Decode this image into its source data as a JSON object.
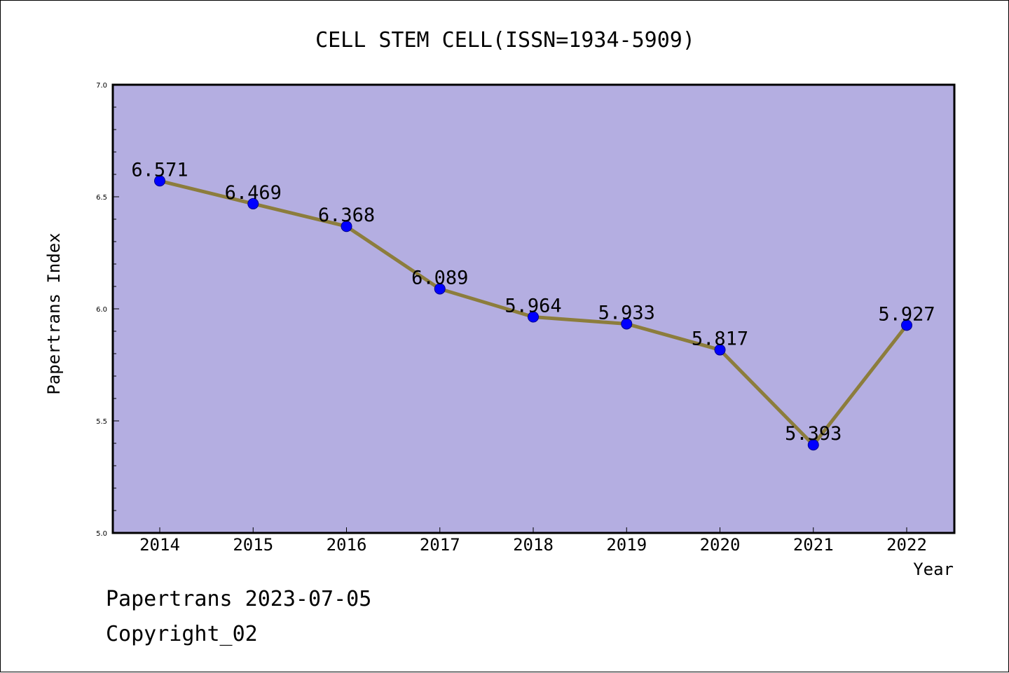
{
  "chart_data": {
    "type": "line",
    "title": "CELL STEM CELL(ISSN=1934-5909)",
    "xlabel": "Year",
    "ylabel": "Papertrans Index",
    "categories": [
      "2014",
      "2015",
      "2016",
      "2017",
      "2018",
      "2019",
      "2020",
      "2021",
      "2022"
    ],
    "series": [
      {
        "values": [
          6.571,
          6.469,
          6.368,
          6.089,
          5.964,
          5.933,
          5.817,
          5.393,
          5.927
        ],
        "labels": [
          "6.571",
          "6.469",
          "6.368",
          "6.089",
          "5.964",
          "5.933",
          "5.817",
          "5.393",
          "5.927"
        ],
        "line_color": "#8c7d3c",
        "marker_color": "#0000ff"
      }
    ],
    "ylim": [
      5.0,
      7.0
    ],
    "yticks": [
      5.0,
      5.5,
      6.0,
      6.5,
      7.0
    ],
    "ytick_labels": [
      "5.0",
      "5.5",
      "6.0",
      "6.5",
      "7.0"
    ],
    "plot_background": "#b4aee1",
    "grid": false,
    "legend": "none"
  },
  "footer": {
    "line1": "Papertrans 2023-07-05",
    "line2": "Copyright_02"
  }
}
